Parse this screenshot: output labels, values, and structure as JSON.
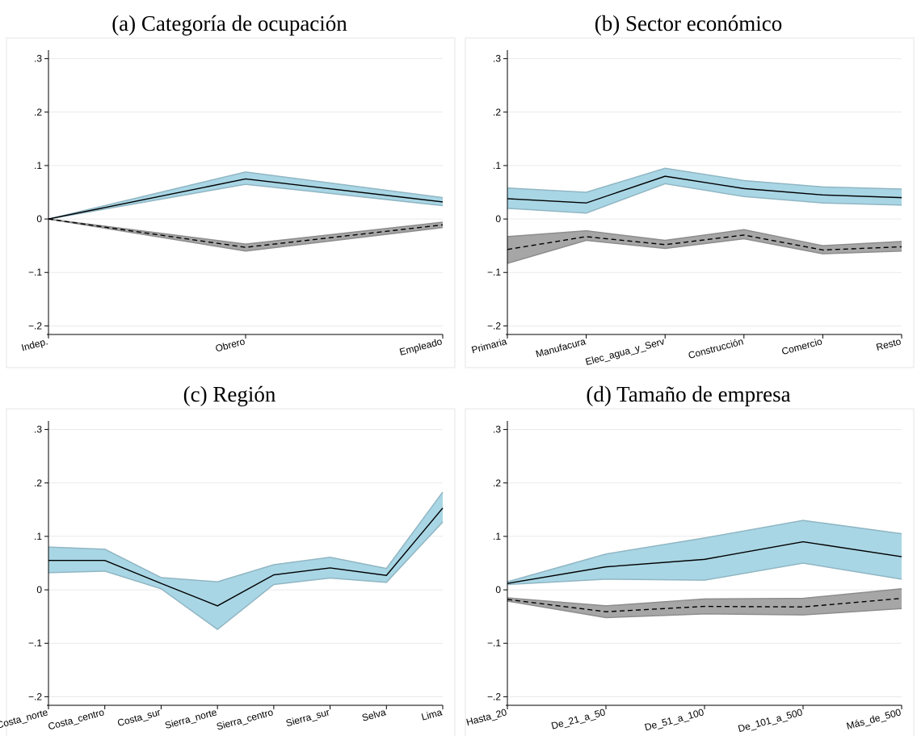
{
  "chart_data": [
    {
      "type": "line",
      "title": "(a) Categoría de ocupación",
      "categories": [
        "Indep.",
        "Obrero",
        "Empleado"
      ],
      "series": [
        {
          "color": "#000000",
          "dash": false,
          "band_color": "#a9d6e5",
          "values": [
            0,
            0.075,
            0.032
          ],
          "lower": [
            0,
            0.065,
            0.025
          ],
          "upper": [
            0,
            0.088,
            0.04
          ]
        },
        {
          "color": "#000000",
          "dash": true,
          "band_color": "#a6a6a6",
          "values": [
            0,
            -0.053,
            -0.011
          ],
          "lower": [
            0,
            -0.06,
            -0.016
          ],
          "upper": [
            0,
            -0.047,
            -0.006
          ]
        }
      ],
      "ylim": [
        -0.21,
        0.31
      ],
      "yticks": [
        {
          "value": -0.2,
          "label": "−.2"
        },
        {
          "value": -0.1,
          "label": "−.1"
        },
        0,
        {
          "value": 0.1,
          "label": ".1"
        },
        {
          "value": 0.2,
          "label": ".2"
        },
        {
          "value": 0.3,
          "label": ".3"
        }
      ],
      "grid": true
    },
    {
      "type": "line",
      "title": "(b) Sector económico",
      "categories": [
        "Primaria",
        "Manufacura",
        "Elec_agua_y_Serv",
        "Construcción",
        "Comercio",
        "Resto"
      ],
      "series": [
        {
          "color": "#000000",
          "dash": false,
          "band_color": "#a9d6e5",
          "values": [
            0.038,
            0.03,
            0.08,
            0.057,
            0.045,
            0.04
          ],
          "lower": [
            0.02,
            0.011,
            0.066,
            0.042,
            0.03,
            0.026
          ],
          "upper": [
            0.058,
            0.05,
            0.095,
            0.072,
            0.06,
            0.056
          ]
        },
        {
          "color": "#000000",
          "dash": true,
          "band_color": "#a6a6a6",
          "values": [
            -0.057,
            -0.033,
            -0.048,
            -0.03,
            -0.058,
            -0.052
          ],
          "lower": [
            -0.083,
            -0.04,
            -0.055,
            -0.037,
            -0.065,
            -0.06
          ],
          "upper": [
            -0.033,
            -0.022,
            -0.04,
            -0.02,
            -0.05,
            -0.042
          ]
        }
      ],
      "ylim": [
        -0.21,
        0.31
      ],
      "yticks": [
        {
          "value": -0.2,
          "label": "−.2"
        },
        {
          "value": -0.1,
          "label": "−.1"
        },
        0,
        {
          "value": 0.1,
          "label": ".1"
        },
        {
          "value": 0.2,
          "label": ".2"
        },
        {
          "value": 0.3,
          "label": ".3"
        }
      ],
      "grid": true
    },
    {
      "type": "line",
      "title": "(c) Región",
      "categories": [
        "Costa_norte",
        "Costa_centro",
        "Costa_sur",
        "Sierra_norte",
        "Sierra_centro",
        "Sierra_sur",
        "Selva",
        "Lima"
      ],
      "series": [
        {
          "color": "#000000",
          "dash": false,
          "band_color": "#a9d6e5",
          "values": [
            0.055,
            0.055,
            0.012,
            -0.03,
            0.028,
            0.041,
            0.027,
            0.153
          ],
          "lower": [
            0.032,
            0.035,
            0.002,
            -0.074,
            0.01,
            0.022,
            0.014,
            0.127
          ],
          "upper": [
            0.08,
            0.076,
            0.023,
            0.015,
            0.047,
            0.061,
            0.04,
            0.183
          ]
        }
      ],
      "ylim": [
        -0.21,
        0.31
      ],
      "yticks": [
        {
          "value": -0.2,
          "label": "−.2"
        },
        {
          "value": -0.1,
          "label": "−.1"
        },
        0,
        {
          "value": 0.1,
          "label": ".1"
        },
        {
          "value": 0.2,
          "label": ".2"
        },
        {
          "value": 0.3,
          "label": ".3"
        }
      ],
      "grid": true
    },
    {
      "type": "line",
      "title": "(d) Tamaño de empresa",
      "categories": [
        "Hasta_20",
        "De_21_a_50",
        "De_51_a_100",
        "De_101_a_500",
        "Más_de_500"
      ],
      "series": [
        {
          "color": "#000000",
          "dash": false,
          "band_color": "#a9d6e5",
          "values": [
            0.012,
            0.043,
            0.057,
            0.09,
            0.062
          ],
          "lower": [
            0.01,
            0.02,
            0.018,
            0.05,
            0.02
          ],
          "upper": [
            0.015,
            0.067,
            0.097,
            0.13,
            0.105
          ]
        },
        {
          "color": "#000000",
          "dash": true,
          "band_color": "#a6a6a6",
          "values": [
            -0.018,
            -0.041,
            -0.031,
            -0.032,
            -0.016
          ],
          "lower": [
            -0.021,
            -0.052,
            -0.045,
            -0.047,
            -0.035
          ],
          "upper": [
            -0.015,
            -0.03,
            -0.017,
            -0.016,
            0.002
          ]
        }
      ],
      "ylim": [
        -0.21,
        0.31
      ],
      "yticks": [
        {
          "value": -0.2,
          "label": "−.2"
        },
        {
          "value": -0.1,
          "label": "−.1"
        },
        0,
        {
          "value": 0.1,
          "label": ".1"
        },
        {
          "value": 0.2,
          "label": ".2"
        },
        {
          "value": 0.3,
          "label": ".3"
        }
      ],
      "grid": true
    }
  ]
}
